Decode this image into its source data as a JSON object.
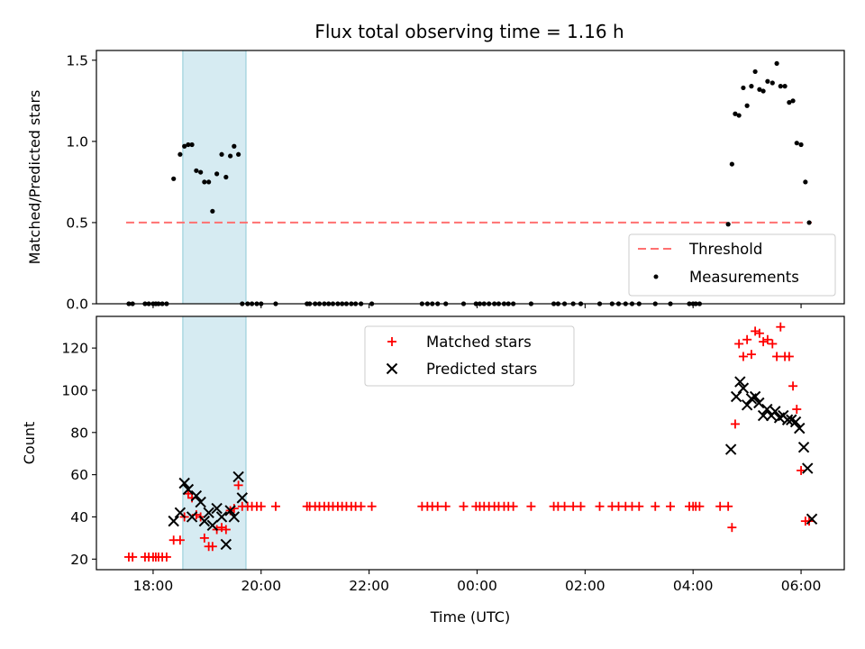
{
  "figure": {
    "title": "Flux total observing time = 1.16 h",
    "xlabel": "Time (UTC)"
  },
  "chart_data": [
    {
      "type": "scatter",
      "panel": "top",
      "ylabel": "Matched/Predicted stars",
      "xlim_hours": [
        16.95,
        30.8
      ],
      "ylim": [
        0,
        1.56
      ],
      "yticks": [
        0.0,
        0.5,
        1.0,
        1.5
      ],
      "ytick_labels": [
        "0.0",
        "0.5",
        "1.0",
        "1.5"
      ],
      "xticks_hours": [
        18,
        20,
        22,
        24,
        26,
        28,
        30
      ],
      "xtick_labels": [
        "18:00",
        "20:00",
        "22:00",
        "00:00",
        "02:00",
        "04:00",
        "06:00"
      ],
      "highlight_span_hours": [
        18.55,
        19.72
      ],
      "highlight_color": "#add8e6",
      "threshold": {
        "name": "Threshold",
        "value": 0.5,
        "x_range_hours": [
          17.5,
          30.2
        ],
        "color": "#ff6b6b"
      },
      "legend": {
        "placement": "lower right",
        "entries": [
          "Threshold",
          "Measurements"
        ]
      },
      "series": [
        {
          "name": "Measurements",
          "color": "#000000",
          "marker": "dot",
          "x_hours": [
            17.55,
            17.62,
            17.85,
            17.92,
            18.0,
            18.05,
            18.1,
            18.17,
            18.25,
            18.38,
            18.5,
            18.58,
            18.65,
            18.72,
            18.8,
            18.88,
            18.95,
            19.03,
            19.1,
            19.18,
            19.27,
            19.35,
            19.43,
            19.5,
            19.58,
            19.65,
            19.75,
            19.83,
            19.92,
            20.0,
            20.27,
            20.85,
            20.9,
            21.0,
            21.08,
            21.17,
            21.25,
            21.33,
            21.42,
            21.5,
            21.58,
            21.67,
            21.75,
            21.85,
            22.05,
            22.98,
            23.08,
            23.17,
            23.27,
            23.42,
            23.75,
            23.98,
            24.05,
            24.13,
            24.22,
            24.32,
            24.4,
            24.5,
            24.58,
            24.67,
            25.0,
            25.42,
            25.5,
            25.62,
            25.78,
            25.92,
            26.27,
            26.5,
            26.62,
            26.75,
            26.87,
            27.0,
            27.3,
            27.58,
            27.93,
            28.0,
            28.05,
            28.12,
            28.65,
            28.72,
            28.78,
            28.85,
            28.93,
            29.0,
            29.08,
            29.15,
            29.23,
            29.3,
            29.38,
            29.47,
            29.55,
            29.62,
            29.7,
            29.78,
            29.85,
            29.92,
            30.0,
            30.08,
            30.15
          ],
          "y": [
            0,
            0,
            0,
            0,
            0,
            0,
            0,
            0,
            0,
            0.77,
            0.92,
            0.97,
            0.98,
            0.98,
            0.82,
            0.81,
            0.75,
            0.75,
            0.57,
            0.8,
            0.92,
            0.78,
            0.91,
            0.97,
            0.92,
            0,
            0,
            0,
            0,
            0,
            0,
            0,
            0,
            0,
            0,
            0,
            0,
            0,
            0,
            0,
            0,
            0,
            0,
            0,
            0,
            0,
            0,
            0,
            0,
            0,
            0,
            0,
            0,
            0,
            0,
            0,
            0,
            0,
            0,
            0,
            0,
            0,
            0,
            0,
            0,
            0,
            0,
            0,
            0,
            0,
            0,
            0,
            0,
            0,
            0,
            0,
            0,
            0,
            0.49,
            0.86,
            1.17,
            1.16,
            1.33,
            1.22,
            1.34,
            1.43,
            1.32,
            1.31,
            1.37,
            1.36,
            1.48,
            1.34,
            1.34,
            1.24,
            1.25,
            0.99,
            0.98,
            0.75,
            0.5
          ]
        }
      ]
    },
    {
      "type": "scatter",
      "panel": "bottom",
      "ylabel": "Count",
      "xlim_hours": [
        16.95,
        30.8
      ],
      "ylim": [
        15,
        135
      ],
      "yticks": [
        20,
        40,
        60,
        80,
        100,
        120
      ],
      "ytick_labels": [
        "20",
        "40",
        "60",
        "80",
        "100",
        "120"
      ],
      "xticks_hours": [
        18,
        20,
        22,
        24,
        26,
        28,
        30
      ],
      "xtick_labels": [
        "18:00",
        "20:00",
        "22:00",
        "00:00",
        "02:00",
        "04:00",
        "06:00"
      ],
      "highlight_span_hours": [
        18.55,
        19.72
      ],
      "highlight_color": "#add8e6",
      "legend": {
        "placement": "upper center",
        "entries": [
          "Matched stars",
          "Predicted stars"
        ]
      },
      "series": [
        {
          "name": "Matched stars",
          "color": "#ff0000",
          "marker": "plus",
          "x_hours": [
            17.55,
            17.62,
            17.85,
            17.92,
            18.0,
            18.05,
            18.1,
            18.17,
            18.25,
            18.38,
            18.5,
            18.58,
            18.65,
            18.72,
            18.8,
            18.88,
            18.95,
            19.03,
            19.1,
            19.18,
            19.27,
            19.35,
            19.43,
            19.5,
            19.58,
            19.65,
            19.75,
            19.83,
            19.92,
            20.0,
            20.27,
            20.85,
            20.9,
            21.0,
            21.08,
            21.17,
            21.25,
            21.33,
            21.42,
            21.5,
            21.58,
            21.67,
            21.75,
            21.85,
            22.05,
            22.98,
            23.08,
            23.17,
            23.27,
            23.42,
            23.75,
            23.98,
            24.05,
            24.13,
            24.22,
            24.32,
            24.4,
            24.5,
            24.58,
            24.67,
            25.0,
            25.42,
            25.5,
            25.62,
            25.78,
            25.92,
            26.27,
            26.5,
            26.62,
            26.75,
            26.87,
            27.0,
            27.3,
            27.58,
            27.93,
            28.0,
            28.05,
            28.12,
            28.5,
            28.65,
            28.72,
            28.78,
            28.85,
            28.93,
            29.0,
            29.08,
            29.15,
            29.23,
            29.3,
            29.38,
            29.47,
            29.55,
            29.62,
            29.7,
            29.78,
            29.85,
            29.92,
            30.0,
            30.08,
            30.15
          ],
          "y": [
            21,
            21,
            21,
            21,
            21,
            21,
            21,
            21,
            21,
            29,
            29,
            40,
            51,
            49,
            41,
            40,
            30,
            26,
            26,
            34,
            35,
            34,
            43,
            44,
            55,
            45,
            45,
            45,
            45,
            45,
            45,
            45,
            45,
            45,
            45,
            45,
            45,
            45,
            45,
            45,
            45,
            45,
            45,
            45,
            45,
            45,
            45,
            45,
            45,
            45,
            45,
            45,
            45,
            45,
            45,
            45,
            45,
            45,
            45,
            45,
            45,
            45,
            45,
            45,
            45,
            45,
            45,
            45,
            45,
            45,
            45,
            45,
            45,
            45,
            45,
            45,
            45,
            45,
            45,
            45,
            35,
            84,
            122,
            116,
            124,
            117,
            128,
            127,
            123,
            124,
            122,
            116,
            130,
            116,
            116,
            102,
            91,
            62,
            38,
            38
          ]
        },
        {
          "name": "Predicted stars",
          "color": "#000000",
          "marker": "x",
          "x_hours": [
            18.38,
            18.5,
            18.58,
            18.65,
            18.72,
            18.8,
            18.88,
            18.95,
            19.03,
            19.1,
            19.18,
            19.27,
            19.35,
            19.43,
            19.5,
            19.58,
            19.65,
            28.7,
            28.8,
            28.87,
            28.93,
            29.0,
            29.08,
            29.15,
            29.22,
            29.3,
            29.37,
            29.45,
            29.52,
            29.6,
            29.67,
            29.75,
            29.82,
            29.9,
            29.97,
            30.05,
            30.12,
            30.2
          ],
          "y": [
            38,
            42,
            56,
            53,
            40,
            50,
            47,
            38,
            42,
            36,
            44,
            40,
            27,
            43,
            40,
            59,
            49,
            72,
            97,
            104,
            101,
            93,
            96,
            97,
            94,
            88,
            91,
            88,
            90,
            87,
            88,
            86,
            86,
            85,
            82,
            73,
            63,
            39
          ]
        }
      ]
    }
  ]
}
